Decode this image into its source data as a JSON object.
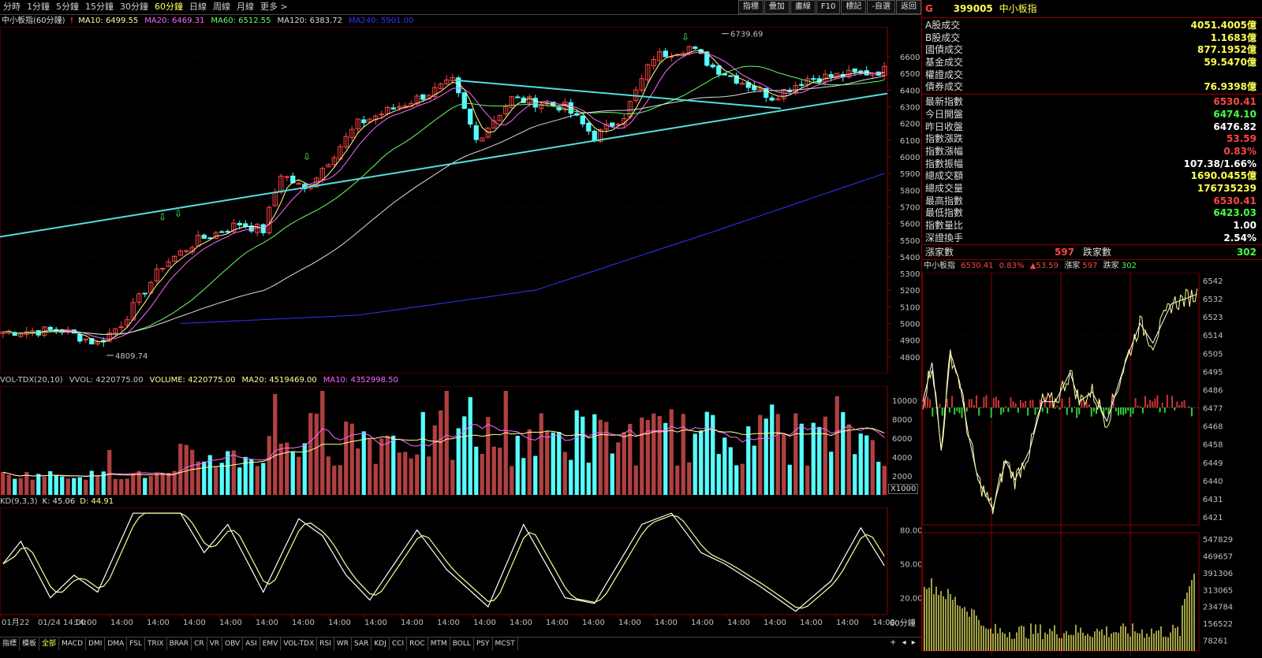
{
  "periods": [
    {
      "label": "分時",
      "active": false
    },
    {
      "label": "1分鐘",
      "active": false
    },
    {
      "label": "5分鐘",
      "active": false
    },
    {
      "label": "15分鐘",
      "active": false
    },
    {
      "label": "30分鐘",
      "active": false
    },
    {
      "label": "60分鐘",
      "active": true
    },
    {
      "label": "日線",
      "active": false
    },
    {
      "label": "周線",
      "active": false
    },
    {
      "label": "月線",
      "active": false
    },
    {
      "label": "更多 >",
      "active": false
    }
  ],
  "toolbar": [
    "指標",
    "疊加",
    "畫線",
    "F10",
    "標記",
    "-自選",
    "返回"
  ],
  "main_chart": {
    "name": "中小板指(60分鐘)",
    "ma": [
      {
        "label": "MA10: 6499.55",
        "color": "#ffff99"
      },
      {
        "label": "MA20: 6469.31",
        "color": "#ff66ff"
      },
      {
        "label": "MA60: 6512.55",
        "color": "#66ff66"
      },
      {
        "label": "MA120: 6383.72",
        "color": "#dddddd"
      },
      {
        "label": "MA240: 5901.00",
        "color": "#3333ff"
      }
    ],
    "high_label": "6739.69",
    "low_label": "4809.74",
    "y_ticks": [
      "6600",
      "6500",
      "6400",
      "6300",
      "6200",
      "6100",
      "6000",
      "5900",
      "5800",
      "5700",
      "5600",
      "5500",
      "5400",
      "5300",
      "5200",
      "5100",
      "5000",
      "4900",
      "4800"
    ]
  },
  "volume": {
    "labels": [
      {
        "label": "VOL-TDX(20,10)",
        "color": "#c8c8c8"
      },
      {
        "label": "VVOL: 4220775.00",
        "color": "#c8c8c8"
      },
      {
        "label": "VOLUME: 4220775.00",
        "color": "#ffff99"
      },
      {
        "label": "MA20: 4519469.00",
        "color": "#ffff99"
      },
      {
        "label": "MA10: 4352998.50",
        "color": "#ff66ff"
      }
    ],
    "y_ticks": [
      "10000",
      "8000",
      "6000",
      "4000",
      "2000"
    ],
    "unit": "X1000"
  },
  "kd": {
    "labels": [
      {
        "label": "KD(9,3,3)",
        "color": "#c8c8c8"
      },
      {
        "label": "K: 45.06",
        "color": "#dddddd"
      },
      {
        "label": "D: 44.91",
        "color": "#ffff99"
      }
    ],
    "y_ticks": [
      "80.00",
      "50.00",
      "20.00"
    ]
  },
  "x_axis": [
    "01月22",
    "01/24 14:00",
    "14:00",
    "14:00",
    "14:00",
    "14:00",
    "14:00",
    "14:00",
    "14:00",
    "14:00",
    "14:00",
    "14:00",
    "14:00",
    "14:00",
    "14:00",
    "14:00",
    "14:00",
    "14:00",
    "14:00",
    "14:00",
    "14:00",
    "14:00",
    "14:00",
    "14:00",
    "14:00"
  ],
  "period_tag": "60分鐘",
  "bottom_tabs": [
    {
      "label": "指標",
      "active": false
    },
    {
      "label": "模板",
      "active": false
    },
    {
      "label": "全部",
      "active": true
    },
    {
      "label": "MACD",
      "active": false
    },
    {
      "label": "DMI",
      "active": false
    },
    {
      "label": "DMA",
      "active": false
    },
    {
      "label": "FSL",
      "active": false
    },
    {
      "label": "TRIX",
      "active": false
    },
    {
      "label": "BRAR",
      "active": false
    },
    {
      "label": "CR",
      "active": false
    },
    {
      "label": "VR",
      "active": false
    },
    {
      "label": "OBV",
      "active": false
    },
    {
      "label": "ASI",
      "active": false
    },
    {
      "label": "EMV",
      "active": false
    },
    {
      "label": "VOL-TDX",
      "active": false
    },
    {
      "label": "RSI",
      "active": false
    },
    {
      "label": "WR",
      "active": false
    },
    {
      "label": "SAR",
      "active": false
    },
    {
      "label": "KDJ",
      "active": false
    },
    {
      "label": "CCI",
      "active": false
    },
    {
      "label": "ROC",
      "active": false
    },
    {
      "label": "MTM",
      "active": false
    },
    {
      "label": "BOLL",
      "active": false
    },
    {
      "label": "PSY",
      "active": false
    },
    {
      "label": "MCST",
      "active": false
    }
  ],
  "right_panel": {
    "g_label": "G",
    "code": "399005",
    "name": "中小板指",
    "section1": [
      {
        "label": "A股成交",
        "value": "4051.4005億",
        "color": "#ffff54"
      },
      {
        "label": "B股成交",
        "value": "1.1683億",
        "color": "#ffff54"
      },
      {
        "label": "國債成交",
        "value": "877.1952億",
        "color": "#ffff54"
      },
      {
        "label": "基金成交",
        "value": "59.5470億",
        "color": "#ffff54"
      },
      {
        "label": "權證成交",
        "value": "",
        "color": "#ffff54"
      },
      {
        "label": "債券成交",
        "value": "76.9398億",
        "color": "#ffff54"
      }
    ],
    "section2": [
      {
        "label": "最新指數",
        "value": "6530.41",
        "color": "#ff4444"
      },
      {
        "label": "今日開盤",
        "value": "6474.10",
        "color": "#44ff44"
      },
      {
        "label": "昨日收盤",
        "value": "6476.82",
        "color": "#ffffff"
      },
      {
        "label": "指數漲跌",
        "value": "53.59",
        "color": "#ff4444"
      },
      {
        "label": "指數漲幅",
        "value": "0.83%",
        "color": "#ff4444"
      },
      {
        "label": "指數振幅",
        "value": "107.38/1.66%",
        "color": "#ffffff"
      },
      {
        "label": "總成交額",
        "value": "1690.0455億",
        "color": "#ffff54"
      },
      {
        "label": "總成交量",
        "value": "176735239",
        "color": "#ffff54"
      },
      {
        "label": "最高指數",
        "value": "6530.41",
        "color": "#ff4444"
      },
      {
        "label": "最低指數",
        "value": "6423.03",
        "color": "#44ff44"
      },
      {
        "label": "指數量比",
        "value": "1.00",
        "color": "#ffffff"
      },
      {
        "label": "深證換手",
        "value": "2.54%",
        "color": "#ffffff"
      }
    ],
    "adv_label": "漲家數",
    "adv_value": "597",
    "dec_label": "跌家數",
    "dec_value": "302",
    "mini_header": {
      "name": "中小板指",
      "price": "6530.41",
      "pct": "0.83%",
      "chg": "▲53.59",
      "adv_label": "漲家",
      "adv": "597",
      "dec_label": "跌家",
      "dec": "302"
    },
    "mini_y": [
      "6542",
      "6532",
      "6523",
      "6514",
      "6505",
      "6495",
      "6486",
      "6477",
      "6468",
      "6458",
      "6449",
      "6440",
      "6431",
      "6421"
    ],
    "mini_vol_y": [
      "547829",
      "469657",
      "391306",
      "313065",
      "234784",
      "156522",
      "78261"
    ]
  },
  "colors": {
    "up": "#ff4444",
    "down": "#55ffff",
    "trend": "#55dddd",
    "red": "#8b0000"
  }
}
